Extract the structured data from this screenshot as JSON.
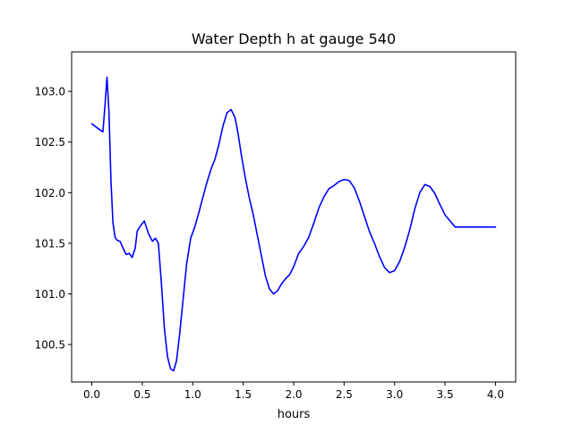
{
  "chart_data": {
    "type": "line",
    "title": "Water Depth h at gauge 540",
    "xlabel": "hours",
    "ylabel": "",
    "xlim": [
      -0.2,
      4.2
    ],
    "ylim": [
      100.13,
      103.39
    ],
    "grid": false,
    "xticks": [
      0.0,
      0.5,
      1.0,
      1.5,
      2.0,
      2.5,
      3.0,
      3.5,
      4.0
    ],
    "xtick_labels": [
      "0.0",
      "0.5",
      "1.0",
      "1.5",
      "2.0",
      "2.5",
      "3.0",
      "3.5",
      "4.0"
    ],
    "yticks": [
      100.5,
      101.0,
      101.5,
      102.0,
      102.5,
      103.0
    ],
    "ytick_labels": [
      "100.5",
      "101.0",
      "101.5",
      "102.0",
      "102.5",
      "103.0"
    ],
    "series": [
      {
        "color": "#0000ff",
        "x": [
          0.0,
          0.04,
          0.08,
          0.11,
          0.13,
          0.15,
          0.17,
          0.19,
          0.21,
          0.23,
          0.25,
          0.28,
          0.31,
          0.34,
          0.37,
          0.4,
          0.43,
          0.45,
          0.48,
          0.52,
          0.56,
          0.6,
          0.63,
          0.66,
          0.69,
          0.72,
          0.75,
          0.78,
          0.81,
          0.84,
          0.87,
          0.9,
          0.94,
          0.98,
          1.02,
          1.06,
          1.1,
          1.14,
          1.18,
          1.22,
          1.26,
          1.3,
          1.34,
          1.38,
          1.42,
          1.45,
          1.48,
          1.52,
          1.56,
          1.6,
          1.64,
          1.68,
          1.72,
          1.76,
          1.8,
          1.84,
          1.88,
          1.92,
          1.96,
          2.0,
          2.05,
          2.1,
          2.15,
          2.2,
          2.25,
          2.3,
          2.35,
          2.4,
          2.45,
          2.5,
          2.55,
          2.6,
          2.65,
          2.7,
          2.75,
          2.8,
          2.85,
          2.9,
          2.95,
          3.0,
          3.05,
          3.1,
          3.15,
          3.2,
          3.25,
          3.3,
          3.35,
          3.4,
          3.45,
          3.5,
          3.55,
          3.6,
          3.65,
          3.7,
          3.75,
          3.8,
          3.85,
          3.9,
          3.95,
          4.0
        ],
        "y": [
          102.68,
          102.65,
          102.62,
          102.6,
          102.85,
          103.14,
          102.8,
          102.1,
          101.7,
          101.56,
          101.53,
          101.52,
          101.45,
          101.39,
          101.4,
          101.36,
          101.45,
          101.62,
          101.67,
          101.72,
          101.6,
          101.52,
          101.55,
          101.5,
          101.1,
          100.65,
          100.38,
          100.26,
          100.24,
          100.34,
          100.6,
          100.9,
          101.3,
          101.55,
          101.66,
          101.8,
          101.95,
          102.1,
          102.23,
          102.33,
          102.48,
          102.66,
          102.79,
          102.82,
          102.74,
          102.58,
          102.38,
          102.15,
          101.95,
          101.78,
          101.58,
          101.38,
          101.18,
          101.05,
          101.0,
          101.03,
          101.1,
          101.15,
          101.19,
          101.27,
          101.4,
          101.47,
          101.56,
          101.7,
          101.85,
          101.96,
          102.04,
          102.07,
          102.11,
          102.13,
          102.12,
          102.05,
          101.92,
          101.77,
          101.62,
          101.5,
          101.37,
          101.26,
          101.21,
          101.23,
          101.32,
          101.46,
          101.63,
          101.84,
          102.0,
          102.08,
          102.06,
          101.99,
          101.88,
          101.78,
          101.72,
          101.66,
          101.66,
          101.66,
          101.66,
          101.66,
          101.66,
          101.66,
          101.66,
          101.66
        ]
      }
    ]
  }
}
